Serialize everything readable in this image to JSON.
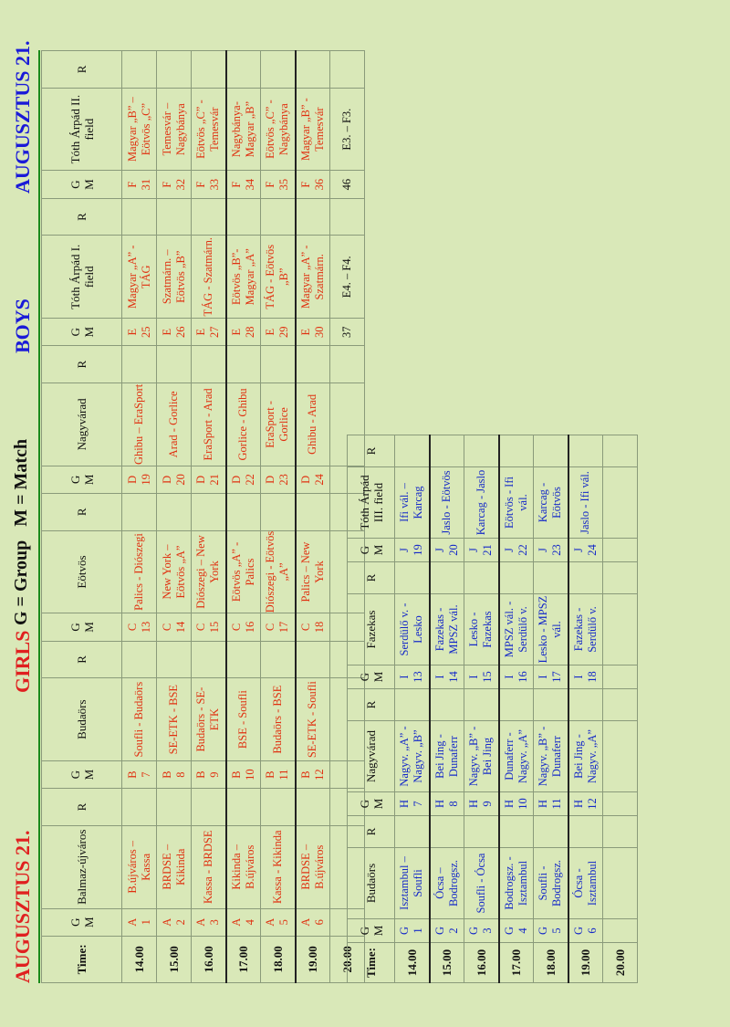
{
  "banner": {
    "date_left": "AUGUSZTUS 21.",
    "girls": "GIRLS",
    "legend": "G = Group   M = Match",
    "boys": "BOYS",
    "date_right": "AUGUSZTUS 21."
  },
  "top_table": {
    "headers": {
      "time": "Time:",
      "g": "G",
      "m": "M",
      "r": "R",
      "venues": [
        "Balmaz-újváros",
        "Budaörs",
        "Eötvös",
        "Nagyvárad",
        "Tóth Árpád I. field",
        "Tóth Árpád II. field"
      ]
    },
    "rows": [
      {
        "time": "14.00",
        "cells": [
          {
            "g": "A",
            "m": "1",
            "match": "B.újváros – Kassa",
            "color": "red"
          },
          {
            "g": "B",
            "m": "7",
            "match": "Soufli - Budaörs",
            "color": "red"
          },
          {
            "g": "C",
            "m": "13",
            "match": "Palics - Diószegi",
            "color": "red"
          },
          {
            "g": "D",
            "m": "19",
            "match": "Ghibu – EraSport",
            "color": "red"
          },
          {
            "g": "E",
            "m": "25",
            "match": "Magyar „A” - TÁG",
            "color": "red"
          },
          {
            "g": "F",
            "m": "31",
            "match": "Magyar „B” – Eötvös „C”",
            "color": "red"
          }
        ]
      },
      {
        "time": "15.00",
        "cells": [
          {
            "g": "A",
            "m": "2",
            "match": "BRDSE – Kikinda",
            "color": "red"
          },
          {
            "g": "B",
            "m": "8",
            "match": "SE-ETK - BSE",
            "color": "red"
          },
          {
            "g": "C",
            "m": "14",
            "match": "New York – Eötvös „A”",
            "color": "red"
          },
          {
            "g": "D",
            "m": "20",
            "match": "Arad - Gorlice",
            "color": "red"
          },
          {
            "g": "E",
            "m": "26",
            "match": "Szatmárn. – Eötvös „B”",
            "color": "red"
          },
          {
            "g": "F",
            "m": "32",
            "match": "Temesvár – Nagybánya",
            "color": "red"
          }
        ]
      },
      {
        "time": "16.00",
        "cells": [
          {
            "g": "A",
            "m": "3",
            "match": "Kassa - BRDSE",
            "color": "red"
          },
          {
            "g": "B",
            "m": "9",
            "match": "Budaörs - SE-ETK",
            "color": "red"
          },
          {
            "g": "C",
            "m": "15",
            "match": "Diószegi – New York",
            "color": "red"
          },
          {
            "g": "D",
            "m": "21",
            "match": "EraSport - Arad",
            "color": "red"
          },
          {
            "g": "E",
            "m": "27",
            "match": "TÁG - Szatmárn.",
            "color": "red"
          },
          {
            "g": "F",
            "m": "33",
            "match": "Eötvös „C” - Temesvár",
            "color": "red"
          }
        ]
      },
      {
        "time": "17.00",
        "cells": [
          {
            "g": "A",
            "m": "4",
            "match": "Kikinda – B.újváros",
            "color": "red"
          },
          {
            "g": "B",
            "m": "10",
            "match": "BSE - Soufli",
            "color": "red"
          },
          {
            "g": "C",
            "m": "16",
            "match": "Eötvös „A” - Palics",
            "color": "red"
          },
          {
            "g": "D",
            "m": "22",
            "match": "Gorlice - Ghibu",
            "color": "red"
          },
          {
            "g": "E",
            "m": "28",
            "match": "Eötvös „B”- Magyar „A”",
            "color": "red"
          },
          {
            "g": "F",
            "m": "34",
            "match": "Nagybánya- Magyar „B”",
            "color": "red"
          }
        ]
      },
      {
        "time": "18.00",
        "cells": [
          {
            "g": "A",
            "m": "5",
            "match": "Kassa - Kikinda",
            "color": "red"
          },
          {
            "g": "B",
            "m": "11",
            "match": "Budaörs - BSE",
            "color": "red"
          },
          {
            "g": "C",
            "m": "17",
            "match": "Diószegi - Eötvös „A”",
            "color": "red"
          },
          {
            "g": "D",
            "m": "23",
            "match": "EraSport - Gorlice",
            "color": "red"
          },
          {
            "g": "E",
            "m": "29",
            "match": "TÁG - Eötvös „B”",
            "color": "red"
          },
          {
            "g": "F",
            "m": "35",
            "match": "Eötvös „C” - Nagybánya",
            "color": "red"
          }
        ]
      },
      {
        "time": "19.00",
        "cells": [
          {
            "g": "A",
            "m": "6",
            "match": "BRDSE – B.újváros",
            "color": "red"
          },
          {
            "g": "B",
            "m": "12",
            "match": "SE-ETK - Soufli",
            "color": "red"
          },
          {
            "g": "C",
            "m": "18",
            "match": "Palics – New York",
            "color": "red"
          },
          {
            "g": "D",
            "m": "24",
            "match": "Ghibu - Arad",
            "color": "red"
          },
          {
            "g": "E",
            "m": "30",
            "match": "Magyar „A” - Szatmárn.",
            "color": "red"
          },
          {
            "g": "F",
            "m": "36",
            "match": "Magyar „B” - Temesvár",
            "color": "red"
          }
        ]
      },
      {
        "time": "20.00",
        "cells": [
          {
            "g": "",
            "m": "",
            "match": "",
            "color": "red"
          },
          {
            "g": "",
            "m": "",
            "match": "",
            "color": "red"
          },
          {
            "g": "",
            "m": "",
            "match": "",
            "color": "red"
          },
          {
            "g": "",
            "m": "",
            "match": "",
            "color": "red"
          },
          {
            "g": "",
            "m": "37",
            "match": "E4. – F4.",
            "color": "dark"
          },
          {
            "g": "",
            "m": "46",
            "match": "E3. – F3.",
            "color": "dark"
          }
        ]
      }
    ]
  },
  "bottom_table": {
    "headers": {
      "time": "Time:",
      "g": "G",
      "m": "M",
      "r": "R",
      "venues": [
        "Budaörs",
        "Nagyvárad",
        "Fazekas",
        "Tóth Árpád III. field"
      ]
    },
    "rows": [
      {
        "time": "14.00",
        "cells": [
          {
            "g": "G",
            "m": "1",
            "match": "Isztambul – Soufli"
          },
          {
            "g": "H",
            "m": "7",
            "match": "Nagyv. „A” - Nagyv. „B”"
          },
          {
            "g": "I",
            "m": "13",
            "match": "Serdülő v. - Lesko"
          },
          {
            "g": "J",
            "m": "19",
            "match": "Ifi vál. – Karcag"
          }
        ]
      },
      {
        "time": "15.00",
        "cells": [
          {
            "g": "G",
            "m": "2",
            "match": "Ócsa – Bodrogsz."
          },
          {
            "g": "H",
            "m": "8",
            "match": "Bei Jing - Dunaferr"
          },
          {
            "g": "I",
            "m": "14",
            "match": "Fazekas - MPSZ vál."
          },
          {
            "g": "J",
            "m": "20",
            "match": "Jaslo - Eötvös"
          }
        ]
      },
      {
        "time": "16.00",
        "cells": [
          {
            "g": "G",
            "m": "3",
            "match": "Soufli - Ócsa"
          },
          {
            "g": "H",
            "m": "9",
            "match": "Nagyv. „B” - Bei Jing"
          },
          {
            "g": "I",
            "m": "15",
            "match": "Lesko - Fazekas"
          },
          {
            "g": "J",
            "m": "21",
            "match": "Karcag - Jaslo"
          }
        ]
      },
      {
        "time": "17.00",
        "cells": [
          {
            "g": "G",
            "m": "4",
            "match": "Bodrogsz. - Isztambul"
          },
          {
            "g": "H",
            "m": "10",
            "match": "Dunaferr - Nagyv. „A”"
          },
          {
            "g": "I",
            "m": "16",
            "match": "MPSZ vál. - Serdülő v."
          },
          {
            "g": "J",
            "m": "22",
            "match": "Eötvös - Ifi vál."
          }
        ]
      },
      {
        "time": "18.00",
        "cells": [
          {
            "g": "G",
            "m": "5",
            "match": "Soufli - Bodrogsz."
          },
          {
            "g": "H",
            "m": "11",
            "match": "Nagyv. „B” - Dunaferr"
          },
          {
            "g": "I",
            "m": "17",
            "match": "Lesko - MPSZ vál."
          },
          {
            "g": "J",
            "m": "23",
            "match": "Karcag - Eötvös"
          }
        ]
      },
      {
        "time": "19.00",
        "cells": [
          {
            "g": "G",
            "m": "6",
            "match": "Ócsa - Isztambul"
          },
          {
            "g": "H",
            "m": "12",
            "match": "Bei Jing - Nagyv. „A”"
          },
          {
            "g": "I",
            "m": "18",
            "match": "Fazekas - Serdülő v."
          },
          {
            "g": "J",
            "m": "24",
            "match": "Jaslo - Ifi vál."
          }
        ]
      },
      {
        "time": "20.00",
        "cells": []
      }
    ]
  }
}
